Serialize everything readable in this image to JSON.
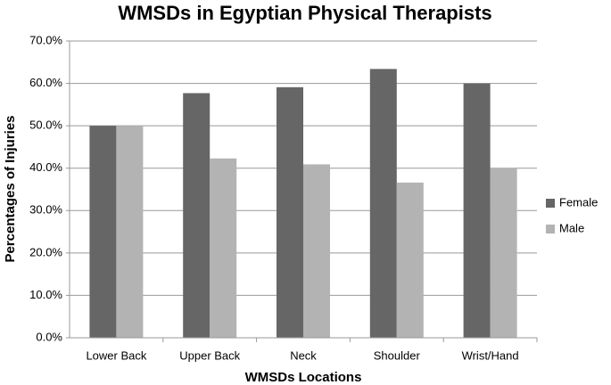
{
  "chart_data": {
    "type": "bar",
    "title": "WMSDs in Egyptian Physical Therapists",
    "x_label": "WMSDs Locations",
    "y_label": "Percentages of Injuries",
    "categories": [
      "Lower Back",
      "Upper Back",
      "Neck",
      "Shoulder",
      "Wrist/Hand"
    ],
    "series": [
      {
        "name": "Female",
        "color": "#666666",
        "values": [
          50.0,
          57.7,
          59.1,
          63.4,
          60.0
        ]
      },
      {
        "name": "Male",
        "color": "#b3b3b3",
        "values": [
          50.0,
          42.3,
          40.9,
          36.6,
          40.0
        ]
      }
    ],
    "ylim": [
      0,
      70
    ],
    "yticks": [
      {
        "value": 0,
        "label": "0.0%"
      },
      {
        "value": 10,
        "label": "10.0%"
      },
      {
        "value": 20,
        "label": "20.0%"
      },
      {
        "value": 30,
        "label": "30.0%"
      },
      {
        "value": 40,
        "label": "40.0%"
      },
      {
        "value": 50,
        "label": "50.0%"
      },
      {
        "value": 60,
        "label": "60.0%"
      },
      {
        "value": 70,
        "label": "70.0%"
      }
    ],
    "grid": true,
    "legend": "right"
  }
}
